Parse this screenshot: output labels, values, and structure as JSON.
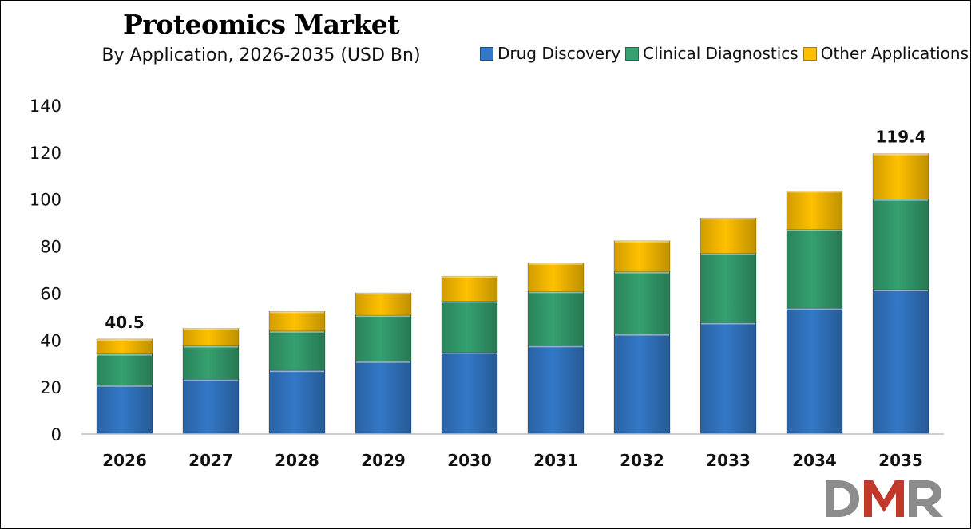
{
  "chart_data": {
    "type": "bar",
    "stacked": true,
    "title": "Proteomics Market",
    "subtitle": "By Application, 2026-2035 (USD Bn)",
    "categories": [
      "2026",
      "2027",
      "2028",
      "2029",
      "2030",
      "2031",
      "2032",
      "2033",
      "2034",
      "2035"
    ],
    "series": [
      {
        "name": "Drug Discovery",
        "color": "#3378c7",
        "values": [
          20.8,
          23.3,
          27.1,
          31.0,
          34.8,
          37.6,
          42.6,
          47.4,
          53.6,
          61.5
        ]
      },
      {
        "name": "Clinical Diagnostics",
        "color": "#35a070",
        "values": [
          13.3,
          14.2,
          16.8,
          19.6,
          21.8,
          23.1,
          26.5,
          29.5,
          33.6,
          38.5
        ]
      },
      {
        "name": "Other Applications",
        "color": "#ffc000",
        "values": [
          6.4,
          7.5,
          8.3,
          9.5,
          10.6,
          12.1,
          13.2,
          15.1,
          16.3,
          19.4
        ]
      }
    ],
    "total_labels": [
      {
        "category": "2026",
        "text": "40.5"
      },
      {
        "category": "2035",
        "text": "119.4"
      }
    ],
    "ylim": [
      0,
      140
    ],
    "yticks": [
      "0",
      "20",
      "40",
      "60",
      "80",
      "100",
      "120",
      "140"
    ],
    "xlabel": "",
    "ylabel": "",
    "grid": false,
    "legend_position": "top-right"
  },
  "logo": {
    "text": "DMR",
    "colors": [
      "#8c8c8c",
      "#c0392b"
    ]
  }
}
